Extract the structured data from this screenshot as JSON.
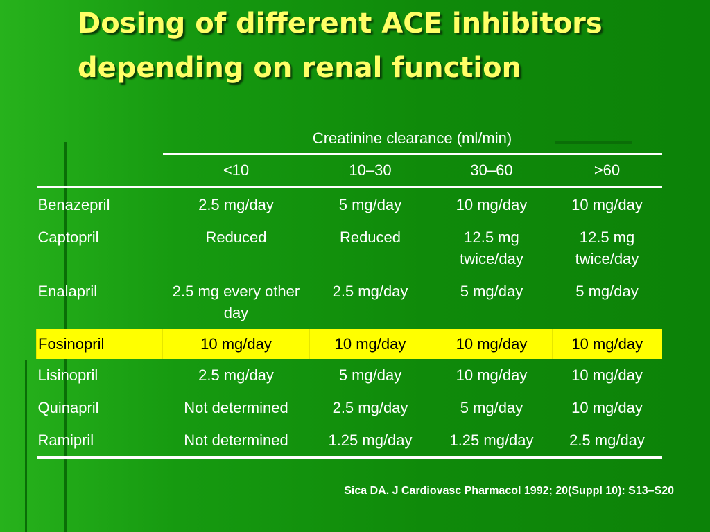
{
  "header": {
    "title": "Dosing of different ACE inhibitors depending on renal function"
  },
  "table": {
    "group_header": "Creatinine clearance (ml/min)",
    "columns": [
      "<10",
      "10–30",
      "30–60",
      ">60"
    ],
    "rows": [
      [
        "Benazepril",
        "2.5 mg/day",
        "5 mg/day",
        "10 mg/day",
        "10 mg/day"
      ],
      [
        "Captopril",
        "Reduced",
        "Reduced",
        "12.5 mg twice/day",
        "12.5 mg twice/day"
      ],
      [
        "Enalapril",
        "2.5 mg every other day",
        "2.5 mg/day",
        "5 mg/day",
        "5 mg/day"
      ],
      [
        "Fosinopril",
        "10 mg/day",
        "10 mg/day",
        "10 mg/day",
        "10 mg/day"
      ],
      [
        "Lisinopril",
        "2.5 mg/day",
        "5 mg/day",
        "10 mg/day",
        "10 mg/day"
      ],
      [
        "Quinapril",
        "Not determined",
        "2.5 mg/day",
        "5 mg/day",
        "10 mg/day"
      ],
      [
        "Ramipril",
        "Not determined",
        "1.25 mg/day",
        "1.25 mg/day",
        "2.5 mg/day"
      ]
    ]
  },
  "footer": {
    "citation": "Sica DA. J Cardiovasc Pharmacol 1992; 20(Suppl 10): S13–S20"
  }
}
